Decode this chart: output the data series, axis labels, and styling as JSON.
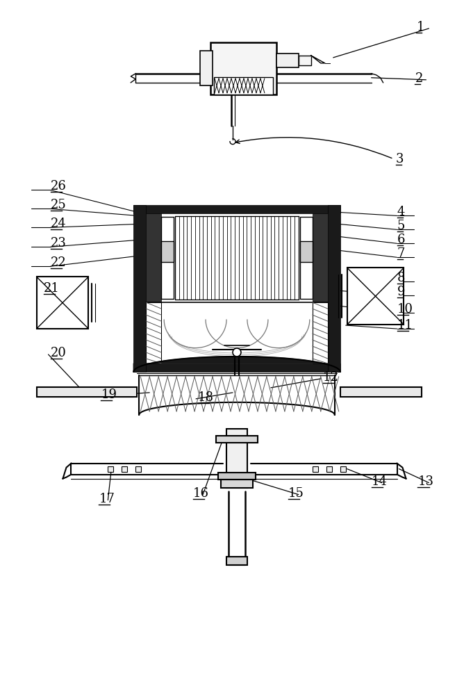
{
  "bg_color": "#ffffff",
  "line_color": "#000000",
  "figsize": [
    6.68,
    10.0
  ],
  "dpi": 100,
  "labels": [
    [
      "1",
      600,
      38
    ],
    [
      "2",
      598,
      112
    ],
    [
      "3",
      570,
      228
    ],
    [
      "4",
      572,
      305
    ],
    [
      "5",
      572,
      325
    ],
    [
      "6",
      572,
      345
    ],
    [
      "7",
      572,
      365
    ],
    [
      "8",
      572,
      400
    ],
    [
      "9",
      572,
      420
    ],
    [
      "10",
      572,
      445
    ],
    [
      "11",
      572,
      468
    ],
    [
      "12",
      465,
      543
    ],
    [
      "13",
      602,
      693
    ],
    [
      "14",
      535,
      693
    ],
    [
      "15",
      415,
      710
    ],
    [
      "16",
      278,
      710
    ],
    [
      "17",
      142,
      718
    ],
    [
      "18",
      285,
      572
    ],
    [
      "19",
      145,
      568
    ],
    [
      "20",
      72,
      508
    ],
    [
      "21",
      62,
      415
    ],
    [
      "22",
      72,
      378
    ],
    [
      "23",
      72,
      350
    ],
    [
      "24",
      72,
      322
    ],
    [
      "25",
      72,
      295
    ],
    [
      "26",
      72,
      268
    ]
  ]
}
